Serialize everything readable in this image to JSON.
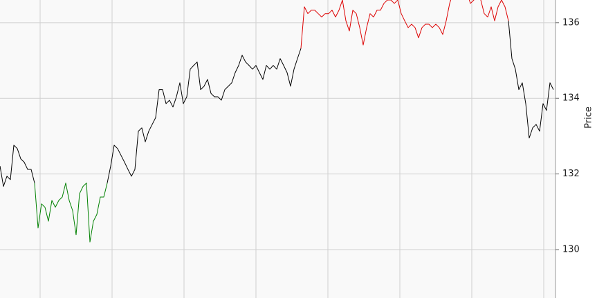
{
  "chart_data": {
    "type": "line",
    "y_label": "Price",
    "ylim": [
      128.72,
      136.6
    ],
    "yticks": [
      130,
      132,
      134,
      136
    ],
    "grid": true,
    "series": [
      {
        "color": "#000000",
        "values": [
          132.21,
          131.67,
          131.94,
          131.85,
          132.76,
          132.67,
          132.4,
          132.31,
          132.12,
          132.12,
          131.76,
          null,
          null,
          null,
          null,
          null,
          null,
          null,
          null,
          null,
          null,
          null,
          null,
          null,
          null,
          null,
          null,
          null,
          null,
          null,
          null,
          131.76,
          132.21,
          132.76,
          132.67,
          132.49,
          132.31,
          132.12,
          131.94,
          132.12,
          133.13,
          133.22,
          132.85,
          133.13,
          133.31,
          133.49,
          134.23,
          134.23,
          133.86,
          133.95,
          133.77,
          134.04,
          134.41,
          133.86,
          134.04,
          134.77,
          134.87,
          134.96,
          134.23,
          134.32,
          134.5,
          134.13,
          134.04,
          134.04,
          133.95,
          134.23,
          134.32,
          134.41,
          134.68,
          134.87,
          135.14,
          134.96,
          134.87,
          134.77,
          134.87,
          134.68,
          134.5,
          134.87,
          134.77,
          134.87,
          134.77,
          135.05,
          134.87,
          134.68,
          134.32,
          134.77,
          135.05,
          135.32,
          null,
          null,
          null,
          null,
          null,
          null,
          null,
          null,
          null,
          null,
          null,
          null,
          null,
          null,
          null,
          null,
          null,
          null,
          null,
          null,
          null,
          null,
          null,
          null,
          null,
          null,
          null,
          null,
          null,
          null,
          null,
          null,
          null,
          null,
          null,
          null,
          null,
          null,
          null,
          null,
          null,
          null,
          null,
          null,
          null,
          null,
          null,
          null,
          null,
          null,
          null,
          null,
          null,
          null,
          null,
          null,
          null,
          null,
          null,
          136.05,
          135.05,
          134.77,
          134.23,
          134.41,
          133.86,
          132.95,
          133.22,
          133.31,
          133.13,
          133.86,
          133.68,
          134.41,
          134.23
        ]
      },
      {
        "color": "#008000",
        "values": [
          null,
          null,
          null,
          null,
          null,
          null,
          null,
          null,
          null,
          null,
          131.76,
          130.57,
          131.21,
          131.12,
          130.75,
          131.3,
          131.12,
          131.3,
          131.39,
          131.76,
          131.3,
          131.03,
          130.39,
          131.48,
          131.67,
          131.76,
          130.2,
          130.75,
          130.93,
          131.39,
          131.39,
          131.76,
          null,
          null,
          null,
          null,
          null,
          null,
          null,
          null,
          null,
          null,
          null,
          null,
          null,
          null,
          null,
          null,
          null,
          null,
          null,
          null,
          null,
          null,
          null,
          null,
          null,
          null,
          null,
          null,
          null,
          null,
          null,
          null,
          null,
          null,
          null,
          null,
          null,
          null,
          null,
          null,
          null,
          null,
          null,
          null,
          null,
          null,
          null,
          null,
          null,
          null,
          null,
          null,
          null,
          null,
          null,
          null,
          null,
          null,
          null,
          null,
          null,
          null,
          null,
          null,
          null,
          null,
          null,
          null,
          null,
          null,
          null,
          null,
          null,
          null,
          null,
          null,
          null,
          null,
          null,
          null,
          null,
          null,
          null,
          null,
          null,
          null,
          null,
          null,
          null,
          null,
          null,
          null,
          null,
          null,
          null,
          null,
          null,
          null,
          null,
          null,
          null,
          null,
          null,
          null,
          null,
          null,
          null,
          null,
          null,
          null,
          null,
          null,
          null,
          null,
          null,
          null,
          null,
          null,
          null,
          null,
          null,
          null,
          null,
          null,
          null,
          null,
          null,
          null,
          null
        ]
      },
      {
        "color": "#dd0000",
        "values": [
          null,
          null,
          null,
          null,
          null,
          null,
          null,
          null,
          null,
          null,
          null,
          null,
          null,
          null,
          null,
          null,
          null,
          null,
          null,
          null,
          null,
          null,
          null,
          null,
          null,
          null,
          null,
          null,
          null,
          null,
          null,
          null,
          null,
          null,
          null,
          null,
          null,
          null,
          null,
          null,
          null,
          null,
          null,
          null,
          null,
          null,
          null,
          null,
          null,
          null,
          null,
          null,
          null,
          null,
          null,
          null,
          null,
          null,
          null,
          null,
          null,
          null,
          null,
          null,
          null,
          null,
          null,
          null,
          null,
          null,
          null,
          null,
          null,
          null,
          null,
          null,
          null,
          null,
          null,
          null,
          null,
          null,
          null,
          null,
          null,
          null,
          null,
          135.32,
          136.42,
          136.24,
          136.33,
          136.33,
          136.24,
          136.15,
          136.24,
          136.24,
          136.33,
          136.15,
          136.33,
          136.6,
          136.05,
          135.78,
          136.33,
          136.24,
          135.87,
          135.41,
          135.87,
          136.24,
          136.15,
          136.33,
          136.33,
          136.51,
          136.6,
          136.6,
          136.51,
          136.6,
          136.24,
          136.05,
          135.87,
          135.96,
          135.87,
          135.6,
          135.87,
          135.96,
          135.96,
          135.87,
          135.96,
          135.87,
          135.69,
          136.05,
          136.51,
          136.8,
          137.0,
          137.1,
          137.0,
          136.8,
          136.51,
          136.6,
          136.7,
          136.6,
          136.24,
          136.15,
          136.42,
          136.05,
          136.42,
          136.6,
          136.42,
          136.05,
          null,
          null,
          null,
          null,
          null,
          null,
          null,
          null,
          null,
          null,
          null,
          null,
          null
        ]
      }
    ]
  }
}
